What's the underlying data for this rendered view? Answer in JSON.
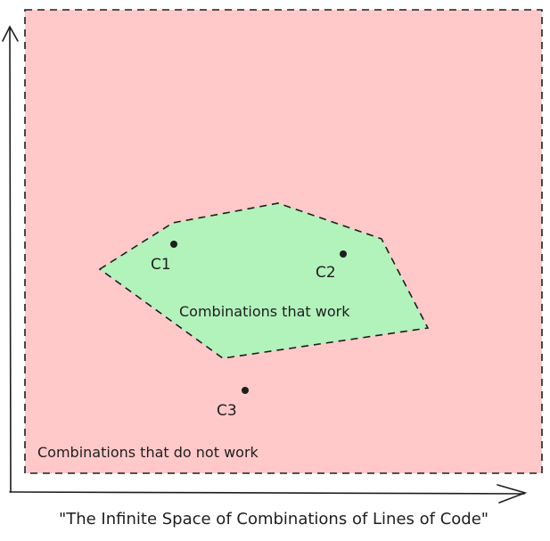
{
  "diagram": {
    "colors": {
      "outer_fill": "#ffc9c9",
      "inner_fill": "#b2f2bb",
      "stroke": "#1e1e1e"
    },
    "axis_label": "\"The Infinite Space of Combinations of Lines of Code\"",
    "outer_region": {
      "label": "Combinations that do not work"
    },
    "inner_region": {
      "label": "Combinations that work"
    },
    "points": [
      {
        "label": "C1"
      },
      {
        "label": "C2"
      },
      {
        "label": "C3"
      }
    ]
  }
}
